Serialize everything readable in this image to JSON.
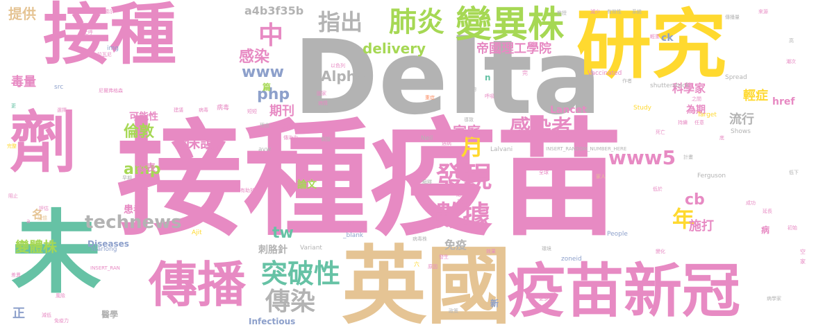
{
  "palette": {
    "pink": "#e78ac3",
    "gray": "#b3b3b3",
    "yellow": "#ffd92f",
    "green": "#a6d854",
    "teal": "#66c2a5",
    "blue": "#8da0cb",
    "tan": "#e5c494",
    "orange": "#fc8d62"
  },
  "words": [
    {
      "text": "接種疫苗"
    },
    {
      "text": "Delta"
    },
    {
      "text": "接種"
    },
    {
      "text": "研究"
    },
    {
      "text": "劑"
    },
    {
      "text": "未"
    },
    {
      "text": "英國"
    },
    {
      "text": "疫苗新冠"
    },
    {
      "text": "傳播"
    },
    {
      "text": "變異株"
    },
    {
      "text": "肺炎"
    },
    {
      "text": "指出"
    },
    {
      "text": "中"
    },
    {
      "text": "發現"
    },
    {
      "text": "數據"
    },
    {
      "text": "突破性"
    },
    {
      "text": "傳染"
    },
    {
      "text": "technews"
    },
    {
      "text": "感染者"
    },
    {
      "text": "www5"
    },
    {
      "text": "帝國理工學院"
    },
    {
      "text": "delivery"
    },
    {
      "text": "a4b3f35b"
    },
    {
      "text": "Alpha"
    },
    {
      "text": "www"
    },
    {
      "text": "php"
    },
    {
      "text": "感染"
    },
    {
      "text": "月"
    },
    {
      "text": "年"
    },
    {
      "text": "倫敦"
    },
    {
      "text": "保護"
    },
    {
      "text": "家庭"
    },
    {
      "text": "期刊"
    },
    {
      "text": "amp"
    },
    {
      "text": "tw"
    },
    {
      "text": "cb"
    },
    {
      "text": "施打"
    },
    {
      "text": "流行"
    },
    {
      "text": "科學家"
    },
    {
      "text": "輕症"
    },
    {
      "text": "毒量"
    },
    {
      "text": "提供"
    },
    {
      "text": "變體株"
    },
    {
      "text": "刺胳針"
    },
    {
      "text": "免疫"
    },
    {
      "text": "Lancet"
    },
    {
      "text": "論文"
    },
    {
      "text": "Diseases"
    },
    {
      "text": "Infectious"
    },
    {
      "text": "患者"
    },
    {
      "text": "發表"
    },
    {
      "text": "可能性"
    },
    {
      "text": "為期"
    },
    {
      "text": "名"
    },
    {
      "text": "正"
    },
    {
      "text": "醫學"
    },
    {
      "text": "href"
    },
    {
      "text": "ck"
    },
    {
      "text": "n"
    },
    {
      "text": "篇"
    },
    {
      "text": "病"
    },
    {
      "text": "Vaccinated"
    },
    {
      "text": "shutterstock"
    },
    {
      "text": "INSERT_RANDOM_NUMBER_HERE"
    },
    {
      "text": "Ferguson"
    },
    {
      "text": "People"
    },
    {
      "text": "zoneid"
    },
    {
      "text": "_blank"
    },
    {
      "text": "Yearlong"
    },
    {
      "text": "INSERT_RAN"
    },
    {
      "text": "Spread"
    },
    {
      "text": "Study"
    },
    {
      "text": "Target"
    },
    {
      "text": "Shows"
    },
    {
      "text": "Neil"
    },
    {
      "text": "Lalvani"
    },
    {
      "text": "Ajit"
    },
    {
      "text": "Variant"
    },
    {
      "text": "avw"
    },
    {
      "text": "src"
    },
    {
      "text": "img"
    },
    {
      "text": "a"
    },
    {
      "text": "顯示"
    },
    {
      "text": "上呼"
    },
    {
      "text": "拉瓦尼"
    },
    {
      "text": "尼爾弗格森"
    },
    {
      "text": "以色列"
    },
    {
      "text": "國家"
    },
    {
      "text": "病情"
    },
    {
      "text": "重症"
    },
    {
      "text": "足夠"
    },
    {
      "text": "呼吸"
    },
    {
      "text": "教授"
    },
    {
      "text": "減少"
    },
    {
      "text": "有效性"
    },
    {
      "text": "系統"
    },
    {
      "text": "傳播量"
    },
    {
      "text": "來源"
    },
    {
      "text": "高"
    },
    {
      "text": "輕重"
    },
    {
      "text": "作者"
    },
    {
      "text": "之間"
    },
    {
      "text": "潮次"
    },
    {
      "text": "持續"
    },
    {
      "text": "任意"
    },
    {
      "text": "死亡"
    },
    {
      "text": "底"
    },
    {
      "text": "計畫"
    },
    {
      "text": "低下"
    },
    {
      "text": "家人"
    },
    {
      "text": "低於"
    },
    {
      "text": "成功"
    },
    {
      "text": "延長"
    },
    {
      "text": "初始"
    },
    {
      "text": "全球"
    },
    {
      "text": "環境"
    },
    {
      "text": "變化"
    },
    {
      "text": "年長"
    },
    {
      "text": "病學家"
    },
    {
      "text": "更多"
    },
    {
      "text": "政策"
    },
    {
      "text": "原因"
    },
    {
      "text": "病毒株"
    },
    {
      "text": "效果"
    },
    {
      "text": "發生"
    },
    {
      "text": "首度"
    },
    {
      "text": "一點"
    },
    {
      "text": "解釋"
    },
    {
      "text": "導致"
    },
    {
      "text": "遇病"
    },
    {
      "text": "病毒"
    },
    {
      "text": "建議"
    },
    {
      "text": "短短"
    },
    {
      "text": "理由"
    },
    {
      "text": "減弱"
    },
    {
      "text": "傳染力"
    },
    {
      "text": "假設"
    },
    {
      "text": "有助於"
    },
    {
      "text": "時間段"
    },
    {
      "text": "最嚴重"
    },
    {
      "text": "病學"
    },
    {
      "text": "選擇"
    },
    {
      "text": "更"
    },
    {
      "text": "完整"
    },
    {
      "text": "早期"
    },
    {
      "text": "足以"
    },
    {
      "text": "阻止"
    },
    {
      "text": "評估"
    },
    {
      "text": "記憶"
    },
    {
      "text": "差異"
    },
    {
      "text": "風險"
    },
    {
      "text": "減低"
    },
    {
      "text": "免疫力"
    },
    {
      "text": "六"
    },
    {
      "text": "新"
    },
    {
      "text": "空"
    },
    {
      "text": "家"
    },
    {
      "text": "完"
    },
    {
      "text": "病毒"
    }
  ]
}
